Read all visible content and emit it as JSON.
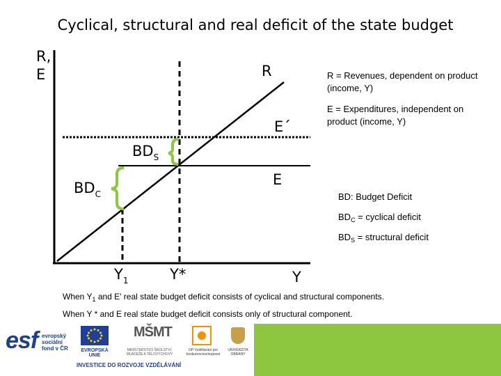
{
  "title": "Cyclical, structural and real deficit of the state budget",
  "y_axis_label_line1": "R,",
  "y_axis_label_line2": "E",
  "labels": {
    "R": "R",
    "E_prime": "E´",
    "E": "E",
    "BDs_main": "BD",
    "BDs_sub": "S",
    "BDc_main": "BD",
    "BDc_sub": "C",
    "Y1_main": "Y",
    "Y1_sub": "1",
    "Ystar": "Y*",
    "Y": "Y"
  },
  "legend": {
    "r_def": "R = Revenues,  dependent on product (income, Y)",
    "e_def": "E = Expenditures, independent on product (income, Y)",
    "bd_def": "BD: Budget Deficit",
    "bdc_pre": "BD",
    "bdc_sub": "C",
    "bdc_post": " = cyclical deficit",
    "bds_pre": "BD",
    "bds_sub": "S",
    "bds_post": " = structural deficit"
  },
  "notes": {
    "line1_pre": "When Y",
    "line1_sub": "1",
    "line1_post": " and E' real state budget deficit consists of cyclical and structural components.",
    "line2": "When Y * and E real state budget deficit consists only of structural component."
  },
  "footer": {
    "esf": "esf",
    "esf_sub1": "evropský",
    "esf_sub2": "sociální",
    "esf_sub3": "fond v ČR",
    "eu": "EVROPSKÁ UNIE",
    "msmt": "MINISTERSTVO ŠKOLSTVÍ, MLÁDEŽE A TĚLOVÝCHOVY",
    "op": "OP Vzdělávání pro konkurenceschopnost",
    "uni": "UNIVERZITA OBRANY",
    "investment": "INVESTICE DO ROZVOJE VZDĚLÁVÁNÍ",
    "colors": {
      "green": "#8dc63f",
      "eu_blue": "#1f3f99",
      "esf_blue": "#1d3f8f"
    }
  },
  "colors": {
    "brace": "#8dc63f",
    "line": "#000000"
  }
}
